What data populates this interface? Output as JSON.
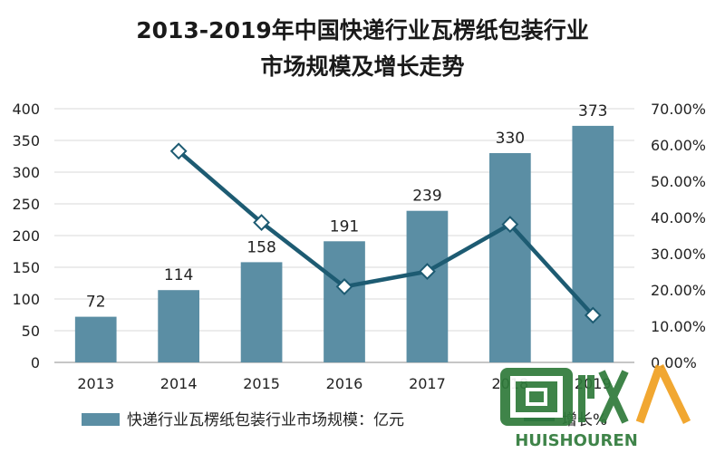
{
  "chart_data": {
    "type": "bar",
    "title_lines": [
      "2013-2019年中国快递行业瓦楞纸包装行业",
      "市场规模及增长走势"
    ],
    "categories": [
      "2013",
      "2014",
      "2015",
      "2016",
      "2017",
      "2018",
      "2019"
    ],
    "series": [
      {
        "name": "快递行业瓦楞纸包装行业市场规模：亿元",
        "type": "bar",
        "axis": "left",
        "values": [
          72,
          114,
          158,
          191,
          239,
          330,
          373
        ],
        "color": "#5b8ea4"
      },
      {
        "name": "增长%",
        "type": "line",
        "axis": "right",
        "values": [
          null,
          58.3,
          38.6,
          20.9,
          25.1,
          38.1,
          13.0
        ],
        "color": "#1d5b72"
      }
    ],
    "left_axis": {
      "min": 0,
      "max": 400,
      "ticks": [
        "0",
        "50",
        "100",
        "150",
        "200",
        "250",
        "300",
        "350",
        "400"
      ]
    },
    "right_axis": {
      "min": 0,
      "max": 70,
      "ticks": [
        "0.00%",
        "10.00%",
        "20.00%",
        "30.00%",
        "40.00%",
        "50.00%",
        "60.00%",
        "70.00%"
      ]
    },
    "grid": true,
    "legend_position": "bottom"
  },
  "watermark": {
    "text": "回收人",
    "subtext": "HUISHOUREN"
  }
}
